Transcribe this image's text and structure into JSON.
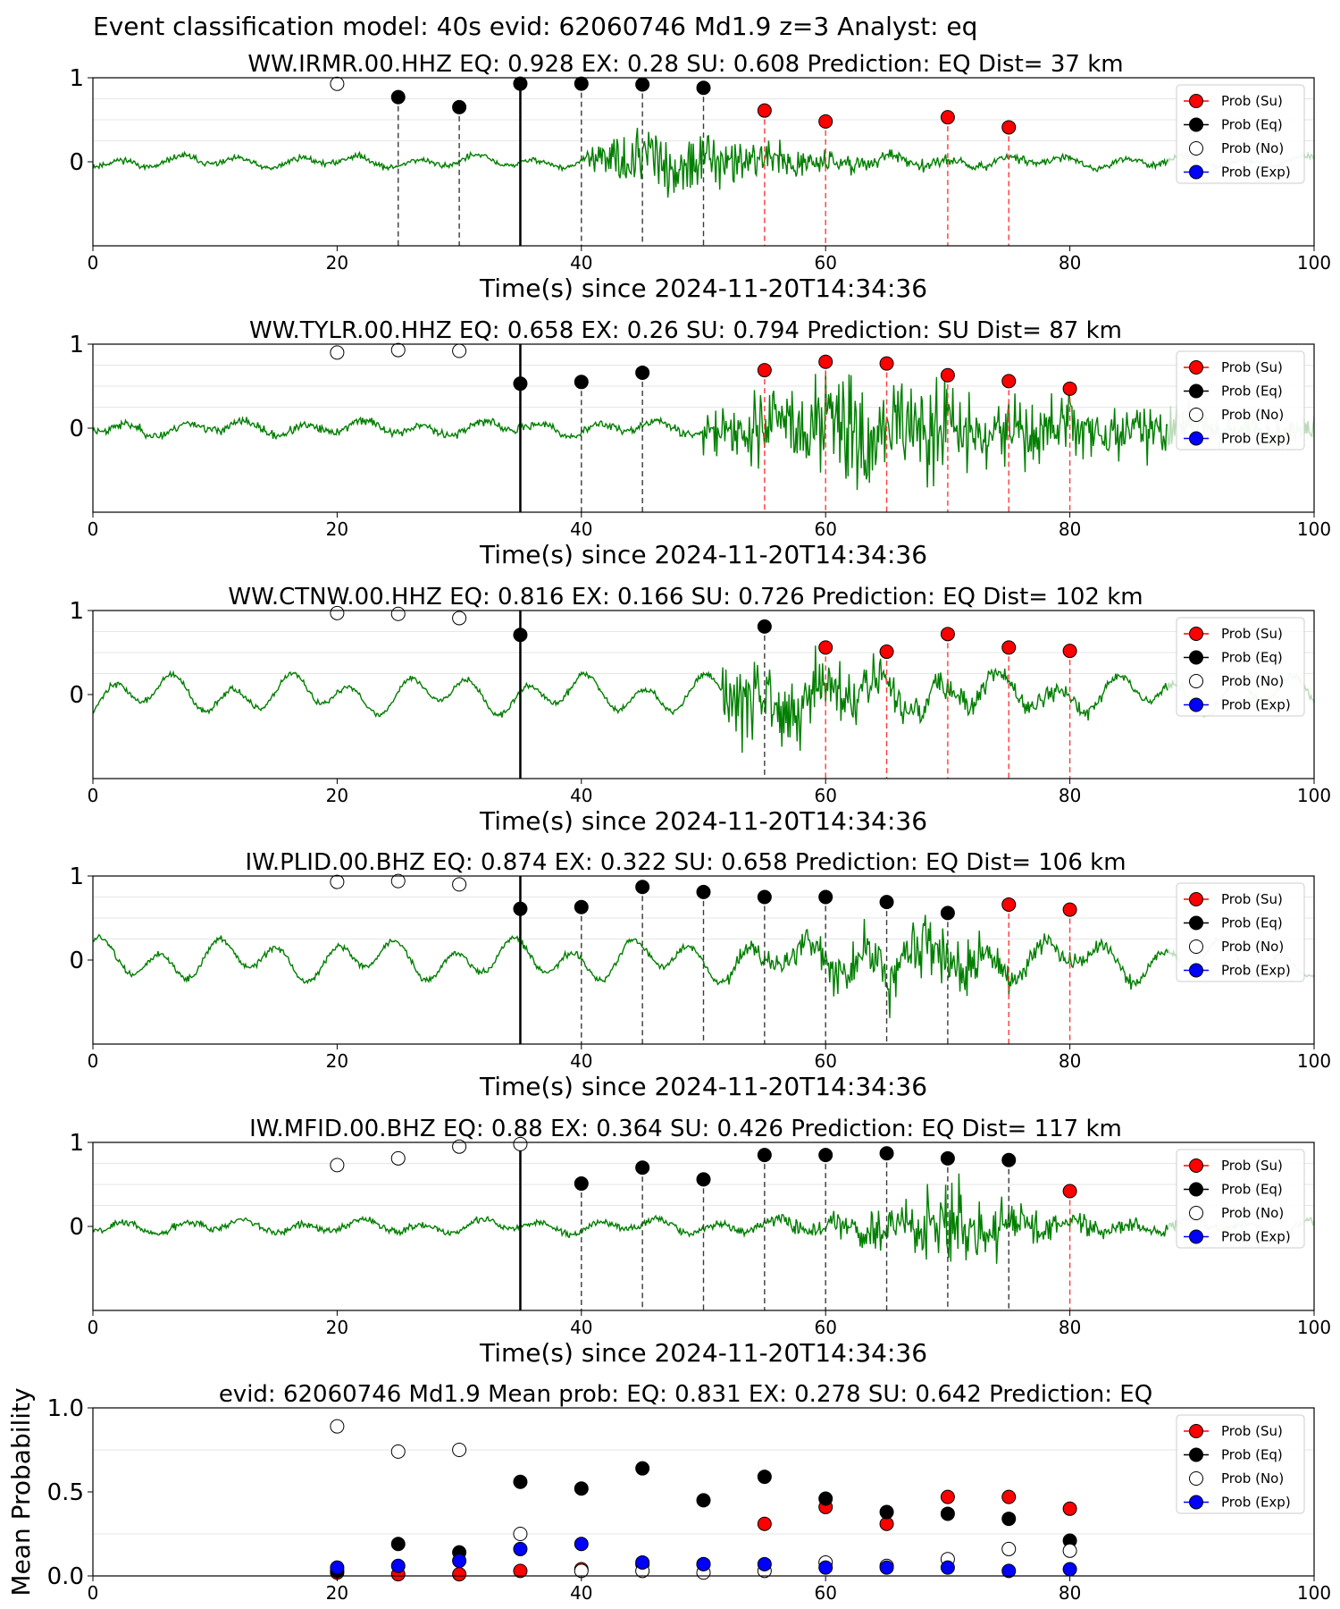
{
  "figure_title": "Event classification model: 40s evid: 62060746 Md1.9 z=3 Analyst: eq",
  "colors": {
    "wave": "#007f00",
    "wave_faded": "#b9dcb9",
    "su": "#ff0000",
    "eq": "#000000",
    "no": "#ffffff",
    "exp": "#0000ff",
    "vline_eq": "#3a3a3a",
    "vline_su": "#ff3a3a"
  },
  "legend": {
    "labels": [
      "Prob (Su)",
      "Prob (Eq)",
      "Prob (No)",
      "Prob (Exp)"
    ],
    "placement": "top-right"
  },
  "xlabel": "Time(s) since 2024-11-20T14:34:36",
  "xlim": [
    0,
    100
  ],
  "xticks": [
    0,
    20,
    40,
    60,
    80,
    100
  ],
  "chart_data": [
    {
      "type": "scatter",
      "title": "WW.IRMR.00.HHZ   EQ: 0.928  EX: 0.28  SU: 0.608   Prediction: EQ    Dist= 37 km",
      "yticks": [
        "1",
        "0"
      ],
      "ylim": [
        -1,
        1
      ],
      "p_arrival": 35,
      "wave": {
        "seed": 11,
        "onset": 40.5,
        "noise": 0.05,
        "amp": 0.32,
        "peak": 46.5,
        "decay": 10,
        "lowfreq": 0.05
      },
      "picks": [
        {
          "t": 20,
          "cls": "no",
          "p": 0.928,
          "line": false
        },
        {
          "t": 25,
          "cls": "eq",
          "p": 0.77,
          "line": true
        },
        {
          "t": 30,
          "cls": "eq",
          "p": 0.65,
          "line": true
        },
        {
          "t": 35,
          "cls": "eq",
          "p": 0.93,
          "line": false
        },
        {
          "t": 40,
          "cls": "eq",
          "p": 0.93,
          "line": true
        },
        {
          "t": 45,
          "cls": "eq",
          "p": 0.92,
          "line": true
        },
        {
          "t": 50,
          "cls": "eq",
          "p": 0.88,
          "line": true
        },
        {
          "t": 55,
          "cls": "su",
          "p": 0.61,
          "line": true
        },
        {
          "t": 60,
          "cls": "su",
          "p": 0.48,
          "line": true
        },
        {
          "t": 70,
          "cls": "su",
          "p": 0.53,
          "line": true
        },
        {
          "t": 75,
          "cls": "su",
          "p": 0.41,
          "line": true
        }
      ]
    },
    {
      "type": "scatter",
      "title": "WW.TYLR.00.HHZ   EQ: 0.658  EX: 0.26  SU: 0.794   Prediction: SU    Dist= 87 km",
      "yticks": [
        "1",
        "0"
      ],
      "ylim": [
        -1,
        1
      ],
      "p_arrival": 35,
      "wave": {
        "seed": 23,
        "onset": 50,
        "noise": 0.07,
        "amp": 0.5,
        "peak": 62,
        "decay": 25,
        "lowfreq": 0.06
      },
      "picks": [
        {
          "t": 20,
          "cls": "no",
          "p": 0.9,
          "line": false
        },
        {
          "t": 25,
          "cls": "no",
          "p": 0.93,
          "line": false
        },
        {
          "t": 30,
          "cls": "no",
          "p": 0.92,
          "line": false
        },
        {
          "t": 35,
          "cls": "eq",
          "p": 0.53,
          "line": false
        },
        {
          "t": 40,
          "cls": "eq",
          "p": 0.55,
          "line": true
        },
        {
          "t": 45,
          "cls": "eq",
          "p": 0.66,
          "line": true
        },
        {
          "t": 55,
          "cls": "su",
          "p": 0.69,
          "line": true
        },
        {
          "t": 60,
          "cls": "su",
          "p": 0.79,
          "line": true
        },
        {
          "t": 65,
          "cls": "su",
          "p": 0.77,
          "line": true
        },
        {
          "t": 70,
          "cls": "su",
          "p": 0.63,
          "line": true
        },
        {
          "t": 75,
          "cls": "su",
          "p": 0.56,
          "line": true
        },
        {
          "t": 80,
          "cls": "su",
          "p": 0.47,
          "line": true
        }
      ]
    },
    {
      "type": "scatter",
      "title": "WW.CTNW.00.HHZ   EQ: 0.816  EX: 0.166  SU: 0.726   Prediction: EQ    Dist= 102 km",
      "yticks": [
        "1",
        "0"
      ],
      "ylim": [
        -1,
        1
      ],
      "p_arrival": 35,
      "wave": {
        "seed": 37,
        "onset": 51.5,
        "noise": 0.05,
        "amp": 0.42,
        "peak": 53,
        "decay": 14,
        "lowfreq": 0.16
      },
      "picks": [
        {
          "t": 20,
          "cls": "no",
          "p": 0.97,
          "line": false
        },
        {
          "t": 25,
          "cls": "no",
          "p": 0.96,
          "line": false
        },
        {
          "t": 30,
          "cls": "no",
          "p": 0.91,
          "line": false
        },
        {
          "t": 35,
          "cls": "eq",
          "p": 0.71,
          "line": false
        },
        {
          "t": 55,
          "cls": "eq",
          "p": 0.81,
          "line": true
        },
        {
          "t": 60,
          "cls": "su",
          "p": 0.56,
          "line": true
        },
        {
          "t": 65,
          "cls": "su",
          "p": 0.51,
          "line": true
        },
        {
          "t": 70,
          "cls": "su",
          "p": 0.72,
          "line": true
        },
        {
          "t": 75,
          "cls": "su",
          "p": 0.56,
          "line": true
        },
        {
          "t": 80,
          "cls": "su",
          "p": 0.52,
          "line": true
        }
      ]
    },
    {
      "type": "scatter",
      "title": "IW.PLID.00.BHZ   EQ: 0.874  EX: 0.322  SU: 0.658   Prediction: EQ    Dist= 106 km",
      "yticks": [
        "1",
        "0"
      ],
      "ylim": [
        -1,
        1
      ],
      "p_arrival": 35,
      "wave": {
        "seed": 51,
        "onset": 51.5,
        "noise": 0.05,
        "amp": 0.35,
        "peak": 66,
        "decay": 9,
        "lowfreq": 0.17
      },
      "picks": [
        {
          "t": 20,
          "cls": "no",
          "p": 0.93,
          "line": false
        },
        {
          "t": 25,
          "cls": "no",
          "p": 0.94,
          "line": false
        },
        {
          "t": 30,
          "cls": "no",
          "p": 0.9,
          "line": false
        },
        {
          "t": 35,
          "cls": "eq",
          "p": 0.61,
          "line": false
        },
        {
          "t": 40,
          "cls": "eq",
          "p": 0.63,
          "line": true
        },
        {
          "t": 45,
          "cls": "eq",
          "p": 0.87,
          "line": true
        },
        {
          "t": 50,
          "cls": "eq",
          "p": 0.81,
          "line": true
        },
        {
          "t": 55,
          "cls": "eq",
          "p": 0.75,
          "line": true
        },
        {
          "t": 60,
          "cls": "eq",
          "p": 0.75,
          "line": true
        },
        {
          "t": 65,
          "cls": "eq",
          "p": 0.69,
          "line": true
        },
        {
          "t": 70,
          "cls": "eq",
          "p": 0.56,
          "line": true
        },
        {
          "t": 75,
          "cls": "su",
          "p": 0.66,
          "line": true
        },
        {
          "t": 80,
          "cls": "su",
          "p": 0.6,
          "line": true
        }
      ]
    },
    {
      "type": "scatter",
      "title": "IW.MFID.00.BHZ   EQ: 0.88  EX: 0.364  SU: 0.426   Prediction: EQ    Dist= 117 km",
      "yticks": [
        "1",
        "0"
      ],
      "ylim": [
        -1,
        1
      ],
      "p_arrival": 35,
      "wave": {
        "seed": 67,
        "onset": 52,
        "noise": 0.06,
        "amp": 0.38,
        "peak": 69.5,
        "decay": 8,
        "lowfreq": 0.06
      },
      "picks": [
        {
          "t": 20,
          "cls": "no",
          "p": 0.73,
          "line": false
        },
        {
          "t": 25,
          "cls": "no",
          "p": 0.81,
          "line": false
        },
        {
          "t": 30,
          "cls": "no",
          "p": 0.95,
          "line": false
        },
        {
          "t": 35,
          "cls": "no",
          "p": 0.98,
          "line": false
        },
        {
          "t": 40,
          "cls": "eq",
          "p": 0.51,
          "line": true
        },
        {
          "t": 45,
          "cls": "eq",
          "p": 0.7,
          "line": true
        },
        {
          "t": 50,
          "cls": "eq",
          "p": 0.56,
          "line": true
        },
        {
          "t": 55,
          "cls": "eq",
          "p": 0.85,
          "line": true
        },
        {
          "t": 60,
          "cls": "eq",
          "p": 0.85,
          "line": true
        },
        {
          "t": 65,
          "cls": "eq",
          "p": 0.87,
          "line": true
        },
        {
          "t": 70,
          "cls": "eq",
          "p": 0.81,
          "line": true
        },
        {
          "t": 75,
          "cls": "eq",
          "p": 0.79,
          "line": true
        },
        {
          "t": 80,
          "cls": "su",
          "p": 0.42,
          "line": true
        }
      ]
    },
    {
      "type": "scatter",
      "title": "evid: 62060746  Md1.9   Mean prob:   EQ: 0.831  EX: 0.278  SU: 0.642   Prediction: EQ",
      "ylabel": "Mean Probability",
      "ylim": [
        0,
        1
      ],
      "yticks": [
        "0.0",
        "0.5",
        "1.0"
      ],
      "x": [
        20,
        25,
        30,
        35,
        40,
        45,
        50,
        55,
        60,
        65,
        70,
        75,
        80
      ],
      "series": [
        {
          "name": "Prob (Su)",
          "cls": "su",
          "values": [
            0.02,
            0.01,
            0.01,
            0.03,
            0.04,
            0.07,
            0.07,
            0.31,
            0.41,
            0.31,
            0.47,
            0.47,
            0.4
          ]
        },
        {
          "name": "Prob (Eq)",
          "cls": "eq",
          "values": [
            0.03,
            0.19,
            0.14,
            0.56,
            0.52,
            0.64,
            0.45,
            0.59,
            0.46,
            0.38,
            0.37,
            0.34,
            0.21
          ]
        },
        {
          "name": "Prob (No)",
          "cls": "no",
          "values": [
            0.89,
            0.74,
            0.75,
            0.25,
            0.03,
            0.03,
            0.02,
            0.03,
            0.08,
            0.06,
            0.1,
            0.16,
            0.15
          ]
        },
        {
          "name": "Prob (Exp)",
          "cls": "exp",
          "values": [
            0.05,
            0.06,
            0.09,
            0.16,
            0.19,
            0.08,
            0.07,
            0.07,
            0.05,
            0.05,
            0.05,
            0.03,
            0.04
          ]
        }
      ]
    }
  ]
}
